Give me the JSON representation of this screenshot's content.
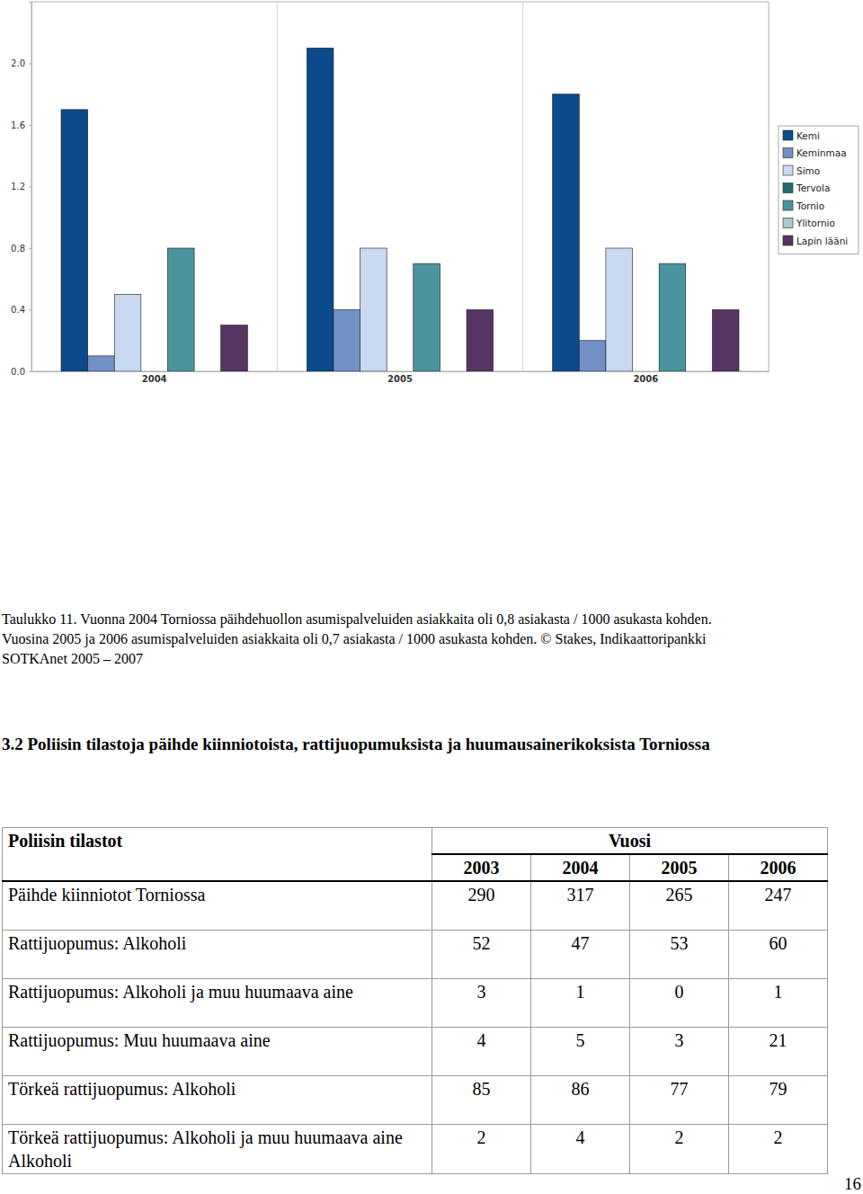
{
  "chart_data": {
    "type": "bar",
    "categories": [
      "2004",
      "2005",
      "2006"
    ],
    "series": [
      {
        "name": "Kemi",
        "color": "#0b4a8b",
        "values": [
          1.7,
          2.1,
          1.8
        ]
      },
      {
        "name": "Keminmaa",
        "color": "#7090c6",
        "values": [
          0.1,
          0.4,
          0.2
        ]
      },
      {
        "name": "Simo",
        "color": "#c9d9f1",
        "values": [
          0.5,
          0.8,
          0.8
        ]
      },
      {
        "name": "Tervola",
        "color": "#1e6f73",
        "values": [
          null,
          null,
          null
        ]
      },
      {
        "name": "Tornio",
        "color": "#4a94a0",
        "values": [
          0.8,
          0.7,
          0.7
        ]
      },
      {
        "name": "Ylitornio",
        "color": "#a9c9cd",
        "values": [
          null,
          null,
          null
        ]
      },
      {
        "name": "Lapin lääni",
        "color": "#553563",
        "values": [
          0.3,
          0.4,
          0.4
        ]
      }
    ],
    "ylim": [
      0,
      2.4
    ],
    "yticks": [
      {
        "value": 0,
        "label": "0.0"
      },
      0.4,
      0.8,
      1.2,
      1.6,
      {
        "value": 2,
        "label": "2.0"
      }
    ],
    "legend": "right"
  },
  "caption": [
    "Taulukko 11.  Vuonna 2004 Torniossa päihdehuollon asumispalveluiden asiakkaita oli 0,8 asiakasta / 1000 asukasta kohden.",
    "Vuosina 2005 ja 2006 asumispalveluiden asiakkaita oli  0,7 asiakasta / 1000 asukasta kohden. © Stakes, Indikaattoripankki",
    "SOTKAnet 2005 – 2007"
  ],
  "heading": "3.2 Poliisin tilastoja päihde kiinniotoista, rattijuopumuksista ja huumausainerikoksista Torniossa",
  "table": {
    "header": {
      "title": "Poliisin tilastot",
      "group": "Vuosi"
    },
    "columns": [
      2003,
      2004,
      2005,
      2006
    ],
    "rows": [
      {
        "label": "Päihde kiinniotot Torniossa",
        "values": [
          290,
          317,
          265,
          247
        ]
      },
      {
        "label": "Rattijuopumus: Alkoholi",
        "values": [
          52,
          47,
          53,
          60
        ]
      },
      {
        "label": "Rattijuopumus: Alkoholi ja muu huumaava aine",
        "values": [
          3,
          1,
          0,
          1
        ]
      },
      {
        "label": "Rattijuopumus: Muu huumaava aine",
        "values": [
          4,
          5,
          3,
          21
        ]
      },
      {
        "label": "Törkeä rattijuopumus: Alkoholi",
        "values": [
          85,
          86,
          77,
          79
        ]
      },
      {
        "label": "Törkeä rattijuopumus: Alkoholi ja muu huumaava aine Alkoholi",
        "values": [
          2,
          4,
          2,
          2
        ]
      }
    ]
  },
  "page_number": 16
}
